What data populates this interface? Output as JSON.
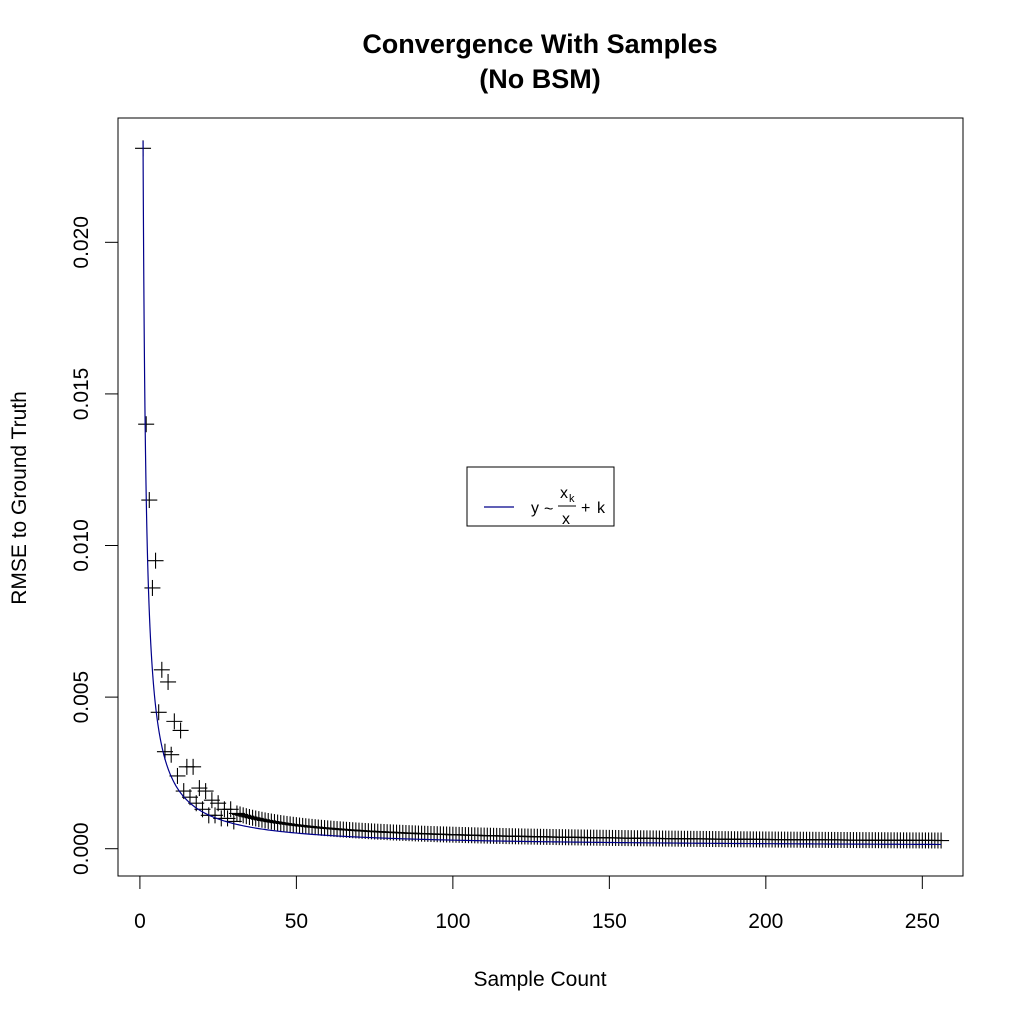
{
  "chart_data": {
    "type": "scatter",
    "title_line1": "Convergence With Samples",
    "title_line2": "(No BSM)",
    "xlabel": "Sample Count",
    "ylabel": "RMSE to Ground Truth",
    "xlim": [
      -7,
      263
    ],
    "ylim": [
      -0.0009,
      0.0241
    ],
    "x_ticks": [
      0,
      50,
      100,
      150,
      200,
      250
    ],
    "x_tick_labels": [
      "0",
      "50",
      "100",
      "150",
      "200",
      "250"
    ],
    "y_ticks": [
      0.0,
      0.005,
      0.01,
      0.015,
      0.02
    ],
    "y_tick_labels": [
      "0.000",
      "0.005",
      "0.010",
      "0.015",
      "0.020"
    ],
    "points": [
      [
        1,
        0.0231
      ],
      [
        2,
        0.014
      ],
      [
        3,
        0.0115
      ],
      [
        4,
        0.0086
      ],
      [
        5,
        0.0095
      ],
      [
        6,
        0.0045
      ],
      [
        7,
        0.0059
      ],
      [
        8,
        0.0032
      ],
      [
        9,
        0.0055
      ],
      [
        10,
        0.0031
      ],
      [
        11,
        0.0042
      ],
      [
        12,
        0.0024
      ],
      [
        13,
        0.0039
      ],
      [
        14,
        0.0019
      ],
      [
        15,
        0.0027
      ],
      [
        16,
        0.0017
      ],
      [
        17,
        0.0027
      ],
      [
        18,
        0.0015
      ],
      [
        19,
        0.002
      ],
      [
        20,
        0.0013
      ],
      [
        21,
        0.0019
      ],
      [
        22,
        0.0011
      ],
      [
        23,
        0.0016
      ],
      [
        24,
        0.0011
      ],
      [
        25,
        0.0015
      ],
      [
        26,
        0.001
      ],
      [
        27,
        0.0013
      ],
      [
        28,
        0.001
      ],
      [
        29,
        0.0013
      ],
      [
        30,
        0.0009
      ]
    ],
    "tail_start": 31,
    "tail_end": 256,
    "fit_model": {
      "xk": 0.0233,
      "k": 5e-05
    },
    "series_color": "#00008b",
    "point_color": "#000000",
    "legend_position": "center-right",
    "legend_y": "y",
    "legend_x": "x",
    "legend_xk": "x",
    "legend_k_sub": "k",
    "legend_k": "k"
  }
}
